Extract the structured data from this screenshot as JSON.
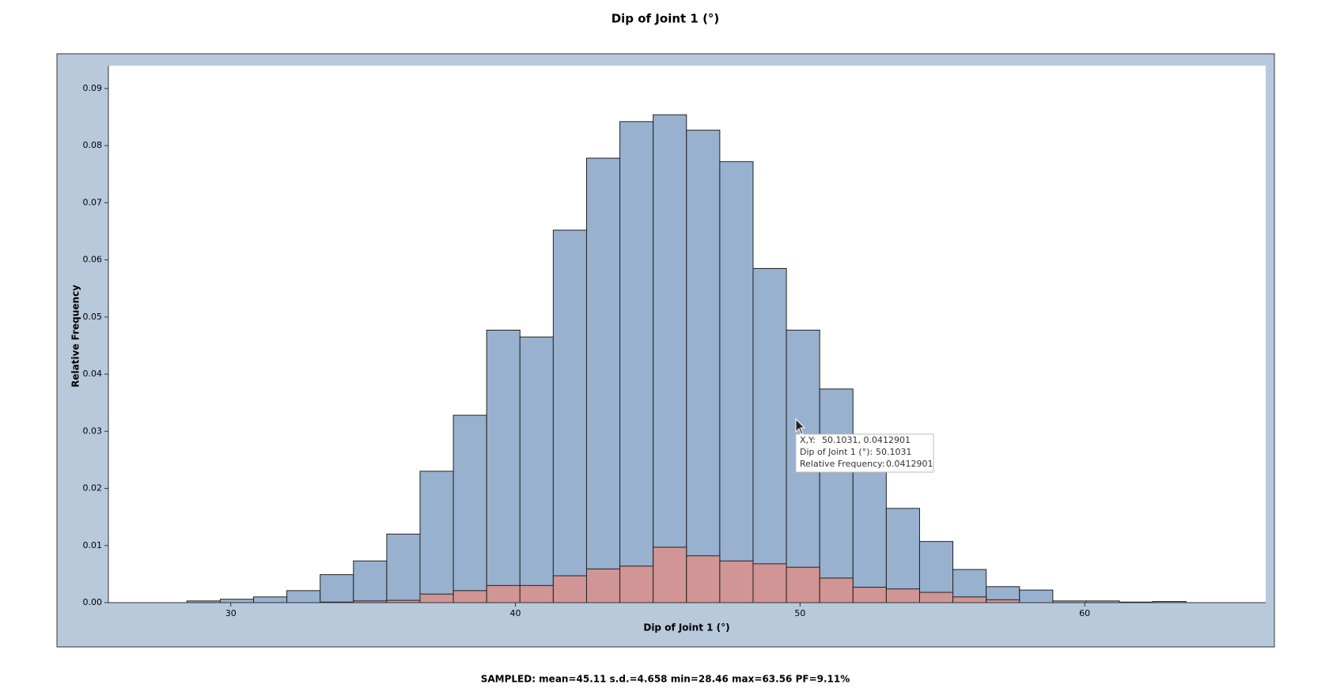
{
  "chart_data": {
    "type": "histogram",
    "title": "Dip of Joint 1 (°)",
    "x_label": "Dip of Joint 1 (°)",
    "y_label": "Relative Frequency",
    "bins": [
      28.46,
      29.63,
      30.8,
      31.97,
      33.14,
      34.31,
      35.48,
      36.65,
      37.82,
      38.99,
      40.16,
      41.33,
      42.5,
      43.67,
      44.84,
      46.01,
      47.18,
      48.35,
      49.52,
      50.69,
      51.86,
      53.03,
      54.2,
      55.37,
      56.54,
      57.71,
      58.88,
      60.05,
      61.22,
      62.39,
      63.56
    ],
    "series": [
      {
        "color": "#98b1cf",
        "values": [
          0.0003,
          0.0006,
          0.001,
          0.0021,
          0.0049,
          0.0073,
          0.012,
          0.023,
          0.0328,
          0.0477,
          0.0465,
          0.0652,
          0.0778,
          0.0842,
          0.0854,
          0.0827,
          0.0772,
          0.0585,
          0.0477,
          0.0374,
          0.0245,
          0.0165,
          0.0107,
          0.0058,
          0.0028,
          0.0022,
          0.0003,
          0.0003,
          0.0001,
          0.0002
        ]
      },
      {
        "color": "#d09594",
        "values": [
          0,
          0,
          0,
          0,
          0.0001,
          0.0003,
          0.0004,
          0.0015,
          0.0021,
          0.003,
          0.003,
          0.0047,
          0.0059,
          0.0064,
          0.0097,
          0.0082,
          0.0073,
          0.0068,
          0.0062,
          0.0043,
          0.0027,
          0.0024,
          0.0018,
          0.001,
          0.0005,
          0,
          0,
          0,
          0,
          0
        ]
      }
    ],
    "xlim": [
      25.7,
      66.36
    ],
    "xticks": [
      30,
      40,
      50,
      60
    ],
    "ylim": [
      0,
      0.094
    ],
    "yticks": [
      {
        "value": 0,
        "label": "0.00"
      },
      {
        "value": 0.01,
        "label": "0.01"
      },
      {
        "value": 0.02,
        "label": "0.02"
      },
      {
        "value": 0.03,
        "label": "0.03"
      },
      {
        "value": 0.04,
        "label": "0.04"
      },
      {
        "value": 0.05,
        "label": "0.05"
      },
      {
        "value": 0.06,
        "label": "0.06"
      },
      {
        "value": 0.07,
        "label": "0.07"
      },
      {
        "value": 0.08,
        "label": "0.08"
      },
      {
        "value": 0.09,
        "label": "0.09"
      }
    ],
    "note": "SAMPLED: mean=45.11 s.d.=4.658 min=28.46 max=63.56 PF=9.11%"
  },
  "tooltip": {
    "rows": [
      [
        "X,Y:",
        "50.1031, 0.0412901"
      ],
      [
        "Dip of Joint 1 (°):",
        "50.1031"
      ],
      [
        "Relative Frequency:",
        "0.0412901"
      ]
    ]
  }
}
